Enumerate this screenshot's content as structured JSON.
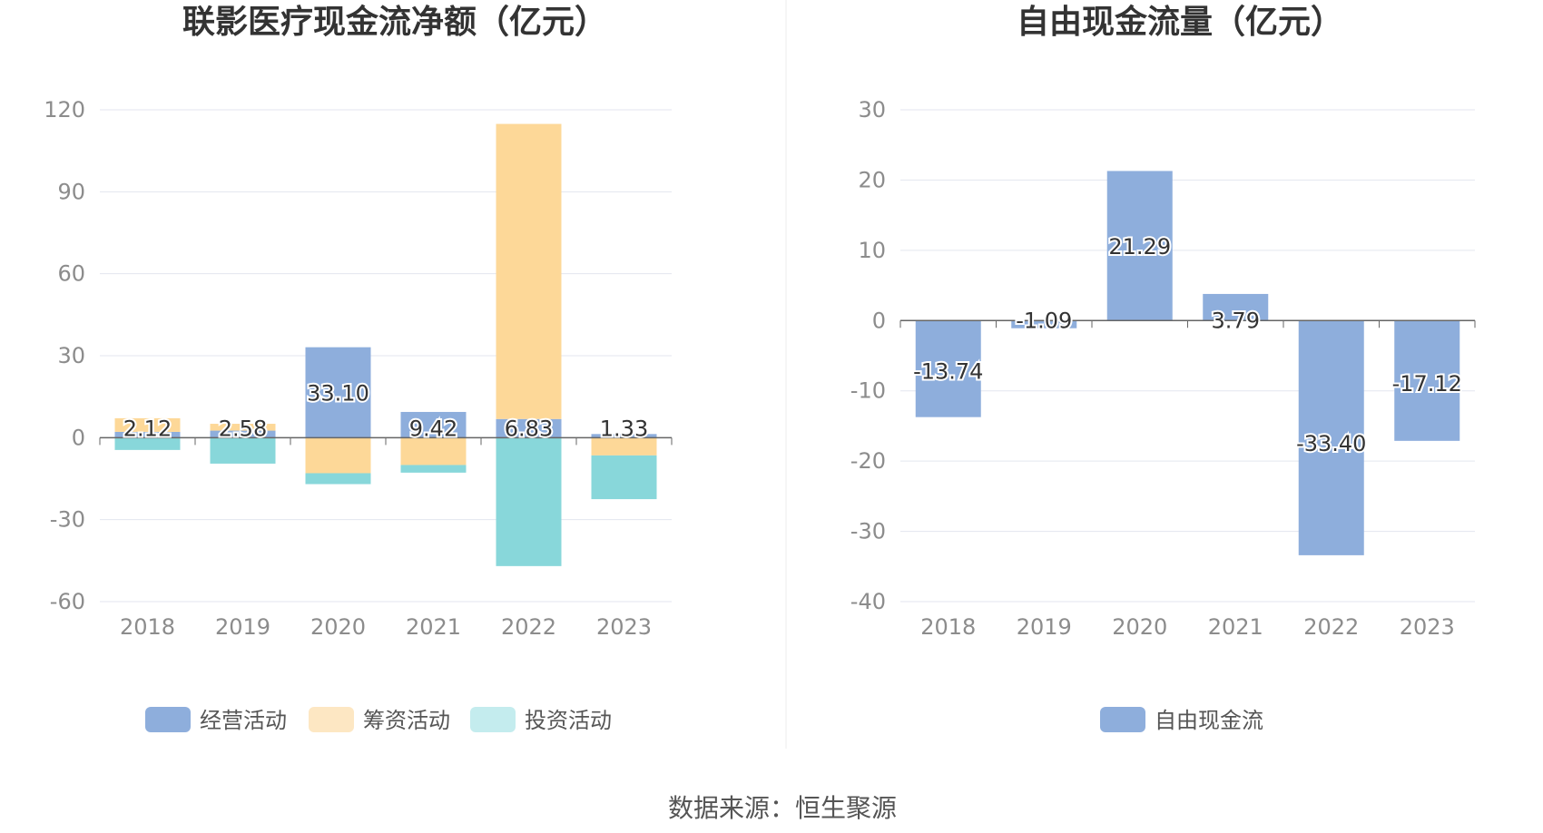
{
  "source_text": "数据来源：恒生聚源",
  "chart_data": [
    {
      "type": "bar",
      "stacked": true,
      "title": "联影医疗现金流净额（亿元）",
      "categories": [
        "2018",
        "2019",
        "2020",
        "2021",
        "2022",
        "2023"
      ],
      "ylim": [
        -60,
        120
      ],
      "yticks": [
        120,
        90,
        60,
        30,
        0,
        -30,
        -60
      ],
      "grid": true,
      "legend_position": "bottom",
      "series": [
        {
          "name": "经营活动",
          "color": "#8eaedc",
          "values": [
            2.12,
            2.58,
            33.1,
            9.42,
            6.83,
            1.33
          ],
          "show_labels": true
        },
        {
          "name": "筹资活动",
          "color": "#fdd898",
          "values": [
            5.0,
            2.5,
            -13.0,
            -10.0,
            108.0,
            -6.5
          ],
          "show_labels": false
        },
        {
          "name": "投资活动",
          "color": "#88d7da",
          "values": [
            -4.5,
            -9.5,
            -4.0,
            -2.8,
            -47.0,
            -16.0
          ],
          "show_labels": false
        }
      ],
      "value_labels": [
        "2.12",
        "2.58",
        "33.10",
        "9.42",
        "6.83",
        "1.33"
      ]
    },
    {
      "type": "bar",
      "title": "自由现金流量（亿元）",
      "categories": [
        "2018",
        "2019",
        "2020",
        "2021",
        "2022",
        "2023"
      ],
      "ylim": [
        -40,
        30
      ],
      "yticks": [
        30,
        20,
        10,
        0,
        -10,
        -20,
        -30,
        -40
      ],
      "grid": true,
      "legend_position": "bottom",
      "series": [
        {
          "name": "自由现金流",
          "color": "#8eaedc",
          "values": [
            -13.74,
            -1.09,
            21.29,
            3.79,
            -33.4,
            -17.12
          ]
        }
      ],
      "value_labels": [
        "-13.74",
        "-1.09",
        "21.29",
        "3.79",
        "-33.40",
        "-17.12"
      ]
    }
  ]
}
